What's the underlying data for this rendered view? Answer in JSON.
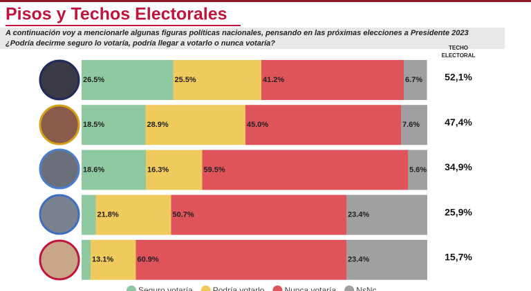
{
  "chart_data": {
    "type": "stacked-bar-horizontal",
    "title": "Pisos y Techos Electorales",
    "subtitle": [
      "A continuación voy a mencionarle algunas figuras políticas nacionales, pensando en las próximas elecciones a Presidente 2023",
      "¿Podría  decirme seguro lo votaría, podría llegar a votarlo o nunca votaría?"
    ],
    "categories": [
      null,
      null,
      null,
      null,
      null
    ],
    "xlim": [
      0,
      100
    ],
    "series": [
      {
        "name": "Seguro votaría",
        "color": "#8ec9a1",
        "values": [
          26.5,
          18.5,
          18.6,
          4.1,
          2.6
        ],
        "value_labels": [
          "26.5%",
          "18.5%",
          "18.6%",
          null,
          null
        ]
      },
      {
        "name": "Podría votarlo",
        "color": "#f0ca5c",
        "values": [
          25.5,
          28.9,
          16.3,
          21.8,
          13.1
        ],
        "value_labels": [
          "25.5%",
          "28.9%",
          "16.3%",
          "21.8%",
          "13.1%"
        ]
      },
      {
        "name": "Nunca votaría",
        "color": "#df535b",
        "values": [
          41.2,
          45.0,
          59.5,
          50.7,
          60.9
        ],
        "value_labels": [
          "41.2%",
          "45.0%",
          "59.5%",
          "50.7%",
          "60.9%"
        ]
      },
      {
        "name": "NsNc",
        "color": "#a0a0a0",
        "values": [
          6.7,
          7.6,
          5.6,
          23.4,
          23.4
        ],
        "value_labels": [
          "6.7%",
          "7.6%",
          "5.6%",
          "23.4%",
          "23.4%"
        ]
      }
    ],
    "ceiling": {
      "title": "TECHO ELECTORAL",
      "values": [
        52.1,
        47.4,
        34.9,
        25.9,
        15.7
      ],
      "value_labels": [
        "52,1%",
        "47,4%",
        "34,9%",
        "25,9%",
        "15,7%"
      ]
    }
  }
}
